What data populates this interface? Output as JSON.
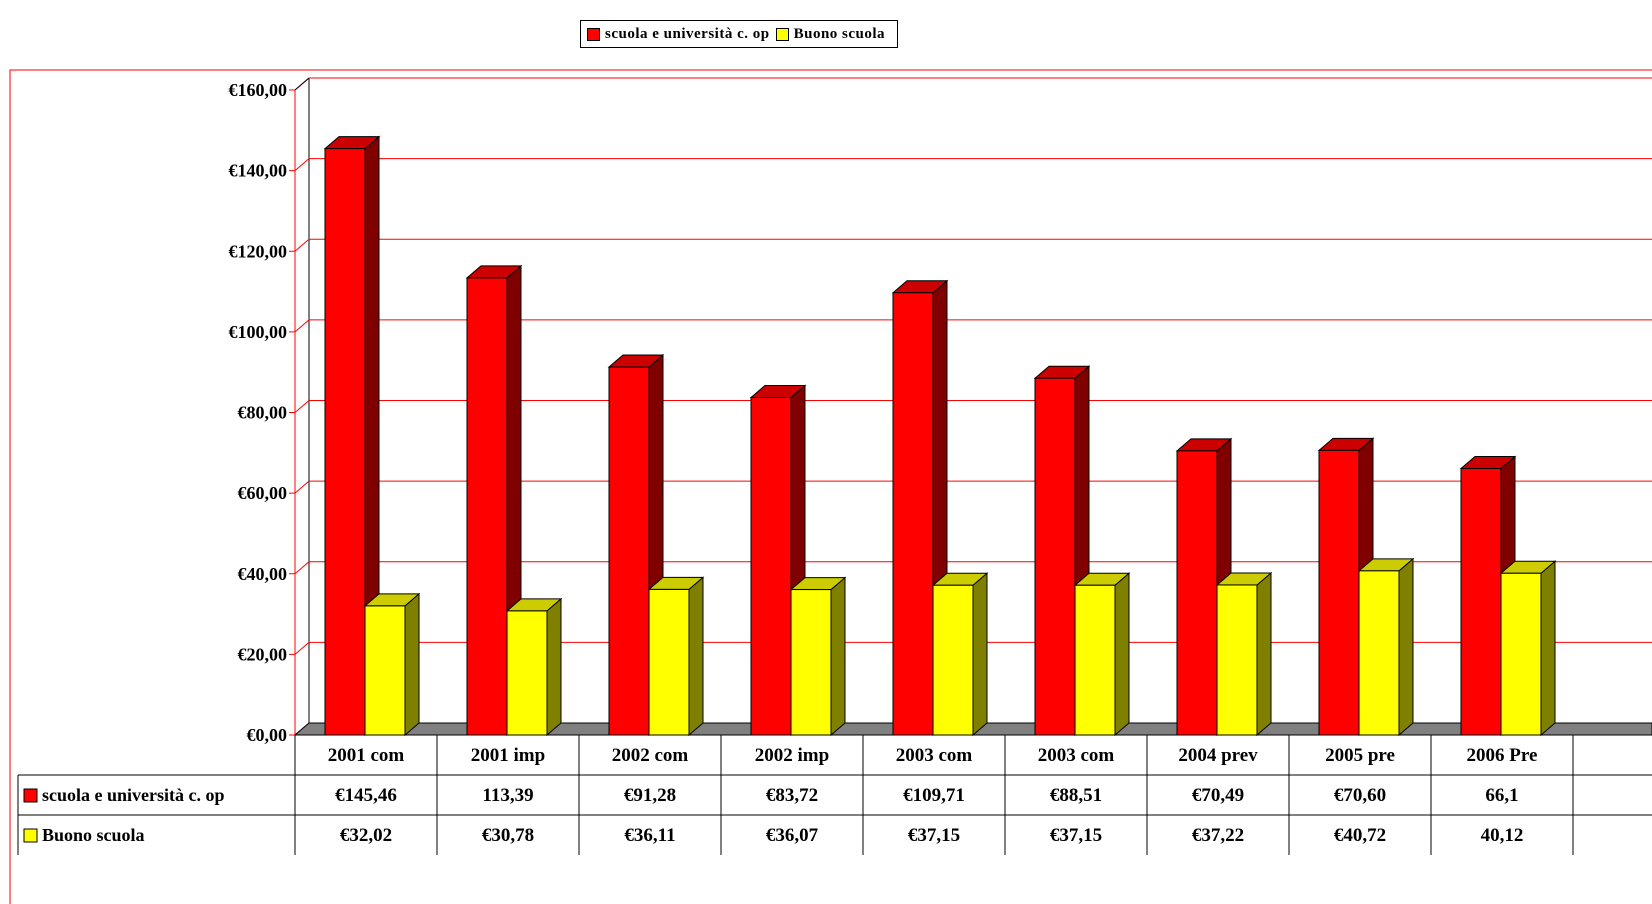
{
  "chart_data": {
    "type": "bar",
    "categories": [
      "2001 com",
      "2001 imp",
      "2002 com",
      "2002 imp",
      "2003 com",
      "2003 com",
      "2004 prev",
      "2005 pre",
      "2006 Pre"
    ],
    "series": [
      {
        "name": "scuola e università c. op",
        "color": "#ff0000",
        "values": [
          145.46,
          113.39,
          91.28,
          83.72,
          109.71,
          88.51,
          70.49,
          70.6,
          66.1
        ],
        "table_labels": [
          "€145,46",
          "113,39",
          "€91,28",
          "€83,72",
          "€109,71",
          "€88,51",
          "€70,49",
          "€70,60",
          "66,1"
        ]
      },
      {
        "name": "Buono scuola",
        "color": "#ffff00",
        "values": [
          32.02,
          30.78,
          36.11,
          36.07,
          37.15,
          37.15,
          37.22,
          40.72,
          40.12
        ],
        "table_labels": [
          "€32,02",
          "€30,78",
          "€36,11",
          "€36,07",
          "€37,15",
          "€37,15",
          "€37,22",
          "€40,72",
          "40,12"
        ]
      }
    ],
    "yaxis": {
      "ticks": [
        0,
        20,
        40,
        60,
        80,
        100,
        120,
        140,
        160
      ],
      "tick_labels": [
        "€0,00",
        "€20,00",
        "€40,00",
        "€60,00",
        "€80,00",
        "€100,00",
        "€120,00",
        "€140,00",
        "€160,00"
      ]
    },
    "ylim": [
      0,
      160
    ],
    "grid": true,
    "legend": "top-center",
    "data_table": true
  }
}
